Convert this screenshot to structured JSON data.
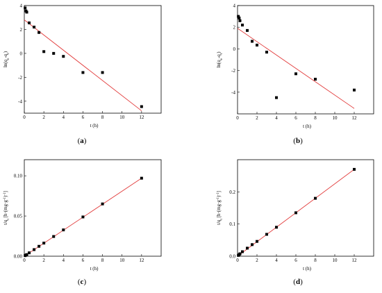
{
  "chart_data": [
    {
      "type": "scatter",
      "panel_label": "(a)",
      "xlabel": "t (h)",
      "ylabel": "ln(qe-qt)",
      "xlim": [
        0,
        14
      ],
      "ylim": [
        -5,
        4
      ],
      "xticks": [
        "0",
        "2",
        "4",
        "6",
        "8",
        "10",
        "12"
      ],
      "yticks": [
        "-4",
        "-2",
        "0",
        "2",
        "4"
      ],
      "series": [
        {
          "points": [
            [
              0.083,
              3.8
            ],
            [
              0.167,
              3.55
            ],
            [
              0.25,
              3.45
            ],
            [
              0.5,
              2.55
            ],
            [
              1,
              2.2
            ],
            [
              1.5,
              1.75
            ],
            [
              2,
              0.15
            ],
            [
              3,
              0.0
            ],
            [
              4,
              -0.25
            ],
            [
              6,
              -1.6
            ],
            [
              8,
              -1.6
            ],
            [
              12,
              -4.45
            ]
          ]
        }
      ],
      "fit_line": {
        "x": [
          0,
          12
        ],
        "y": [
          2.8,
          -4.8
        ],
        "color": "#e23b3b"
      }
    },
    {
      "type": "scatter",
      "panel_label": "(b)",
      "xlabel": "t (h)",
      "ylabel": "ln(qe-qt)",
      "xlim": [
        0,
        14
      ],
      "ylim": [
        -6,
        4
      ],
      "xticks": [
        "0",
        "2",
        "4",
        "6",
        "8",
        "10",
        "12"
      ],
      "yticks": [
        "-4",
        "-2",
        "0",
        "2",
        "4"
      ],
      "series": [
        {
          "points": [
            [
              0.083,
              3.0
            ],
            [
              0.167,
              2.85
            ],
            [
              0.25,
              2.6
            ],
            [
              0.5,
              2.2
            ],
            [
              1,
              1.7
            ],
            [
              1.5,
              0.7
            ],
            [
              2,
              0.35
            ],
            [
              3,
              -0.3
            ],
            [
              4,
              -4.5
            ],
            [
              6,
              -2.3
            ],
            [
              8,
              -2.8
            ],
            [
              12,
              -3.8
            ]
          ]
        }
      ],
      "fit_line": {
        "x": [
          0,
          12
        ],
        "y": [
          1.9,
          -5.5
        ],
        "color": "#e23b3b"
      }
    },
    {
      "type": "scatter",
      "panel_label": "(c)",
      "xlabel": "t (h)",
      "ylabel": "t/qt [h·(mg·g-1)-1]",
      "xlim": [
        0,
        14
      ],
      "ylim": [
        0,
        0.12
      ],
      "xticks": [
        "0",
        "2",
        "4",
        "6",
        "8",
        "10",
        "12"
      ],
      "yticks": [
        "0.00",
        "0.05",
        "0.10"
      ],
      "series": [
        {
          "points": [
            [
              0.083,
              0.0007
            ],
            [
              0.167,
              0.0014
            ],
            [
              0.25,
              0.002
            ],
            [
              0.5,
              0.0042
            ],
            [
              1,
              0.0082
            ],
            [
              1.5,
              0.0123
            ],
            [
              2,
              0.0163
            ],
            [
              3,
              0.0245
            ],
            [
              4,
              0.0327
            ],
            [
              6,
              0.0488
            ],
            [
              8,
              0.065
            ],
            [
              12,
              0.097
            ]
          ]
        }
      ],
      "fit_line": {
        "x": [
          0,
          12
        ],
        "y": [
          0.0,
          0.097
        ],
        "color": "#e23b3b"
      }
    },
    {
      "type": "scatter",
      "panel_label": "(d)",
      "xlabel": "t (h)",
      "ylabel": "t/qt [h·(mg·g-1)-1]",
      "xlim": [
        0,
        14
      ],
      "ylim": [
        0,
        0.3
      ],
      "xticks": [
        "0",
        "2",
        "4",
        "6",
        "8",
        "10",
        "12"
      ],
      "yticks": [
        "0.0",
        "0.1",
        "0.2"
      ],
      "series": [
        {
          "points": [
            [
              0.083,
              0.0025
            ],
            [
              0.167,
              0.005
            ],
            [
              0.25,
              0.0075
            ],
            [
              0.5,
              0.014
            ],
            [
              1,
              0.025
            ],
            [
              1.5,
              0.036
            ],
            [
              2,
              0.046
            ],
            [
              3,
              0.068
            ],
            [
              4,
              0.09
            ],
            [
              6,
              0.135
            ],
            [
              8,
              0.18
            ],
            [
              12,
              0.27
            ]
          ]
        }
      ],
      "fit_line": {
        "x": [
          0,
          12
        ],
        "y": [
          0.0,
          0.27
        ],
        "color": "#e23b3b"
      }
    }
  ]
}
